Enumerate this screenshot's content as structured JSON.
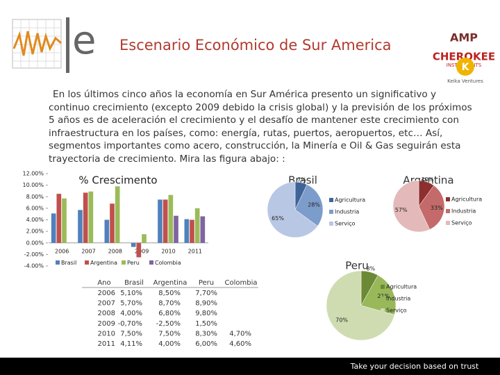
{
  "header": {
    "title": "Escenario Económico de Sur America",
    "brand": "e",
    "logos": [
      "AMP",
      "CHEROKEE",
      "INSTRUMENTS",
      "Keika Ventures"
    ]
  },
  "body": {
    "paragraph": "En los últimos cinco años la economía en Sur América presento un significativo y continuo crecimiento (excepto 2009 debido la crisis global) y la previsión de los próximos 5 años es de aceleración el crecimiento y el desafío de mantener este crecimiento con infraestructura en los países, como: energía, rutas, puertos, aeropuertos, etc… Así, segmentos importantes como acero, construcción, la Minería e Oil & Gas seguirán esta trayectoria de crecimiento. Mira las figura abajo: :"
  },
  "chart_data": [
    {
      "type": "bar",
      "title": "% Crescimento",
      "categories": [
        "2006",
        "2007",
        "2008",
        "2009",
        "2010",
        "2011"
      ],
      "series": [
        {
          "name": "Brasil",
          "color": "#4f81bd",
          "values": [
            5.1,
            5.7,
            4.0,
            -0.7,
            7.5,
            4.11
          ]
        },
        {
          "name": "Argentina",
          "color": "#c0504d",
          "values": [
            8.5,
            8.7,
            6.8,
            -2.5,
            7.5,
            4.0
          ]
        },
        {
          "name": "Peru",
          "color": "#9bbb59",
          "values": [
            7.7,
            8.9,
            9.8,
            1.5,
            8.3,
            6.0
          ]
        },
        {
          "name": "Colombia",
          "color": "#8064a2",
          "values": [
            null,
            null,
            null,
            null,
            4.7,
            4.6
          ]
        }
      ],
      "ylim": [
        -4,
        12
      ],
      "yticks": [
        {
          "value": -4,
          "label": "-4.00%"
        },
        {
          "value": -2,
          "label": "-2.00%"
        },
        {
          "value": 0,
          "label": "0.00%"
        },
        {
          "value": 2,
          "label": "2.00%"
        },
        {
          "value": 4,
          "label": "4.00%"
        },
        {
          "value": 6,
          "label": "6.00%"
        },
        {
          "value": 8,
          "label": "8.00%"
        },
        {
          "value": 10,
          "label": "10.00%"
        },
        {
          "value": 12,
          "label": "12.00%"
        }
      ],
      "grid": false
    },
    {
      "type": "pie",
      "title": "Brasil",
      "categories": [
        "Agricultura",
        "Industria",
        "Serviço"
      ],
      "values": [
        7,
        28,
        65
      ],
      "value_labels": [
        "7%",
        "28%",
        "65%"
      ],
      "colors": [
        "#3f6497",
        "#7c9ccc",
        "#b8c7e4"
      ]
    },
    {
      "type": "pie",
      "title": "Argentina",
      "categories": [
        "Agricultura",
        "Industria",
        "Serviço"
      ],
      "values": [
        10,
        33,
        57
      ],
      "value_labels": [
        "10%",
        "33%",
        "57%"
      ],
      "colors": [
        "#8e2f2f",
        "#c46a6a",
        "#e3b9b9"
      ]
    },
    {
      "type": "pie",
      "title": "Peru",
      "categories": [
        "Agricultura",
        "Industria",
        "Serviço"
      ],
      "values": [
        8,
        21,
        70
      ],
      "value_labels": [
        "8%",
        "21%",
        "70%"
      ],
      "colors": [
        "#6c8a35",
        "#98b85a",
        "#cfdcb1"
      ]
    }
  ],
  "table": {
    "header": [
      "Ano",
      "Brasil",
      "Argentina",
      "Peru",
      "Colombia"
    ],
    "rows": [
      [
        "2006",
        "5,10%",
        "8,50%",
        "7,70%"
      ],
      [
        "2007",
        "5,70%",
        "8,70%",
        "8,90%"
      ],
      [
        "2008",
        "4,00%",
        "6,80%",
        "9,80%"
      ],
      [
        "2009",
        "-0,70%",
        "-2,50%",
        "1,50%"
      ],
      [
        "2010",
        "7,50%",
        "7,50%",
        "8,30%",
        "4,70%"
      ],
      [
        "2011",
        "4,11%",
        "4,00%",
        "6,00%",
        "4,60%"
      ]
    ]
  },
  "footer": {
    "text": "Take your decision based on trust"
  }
}
